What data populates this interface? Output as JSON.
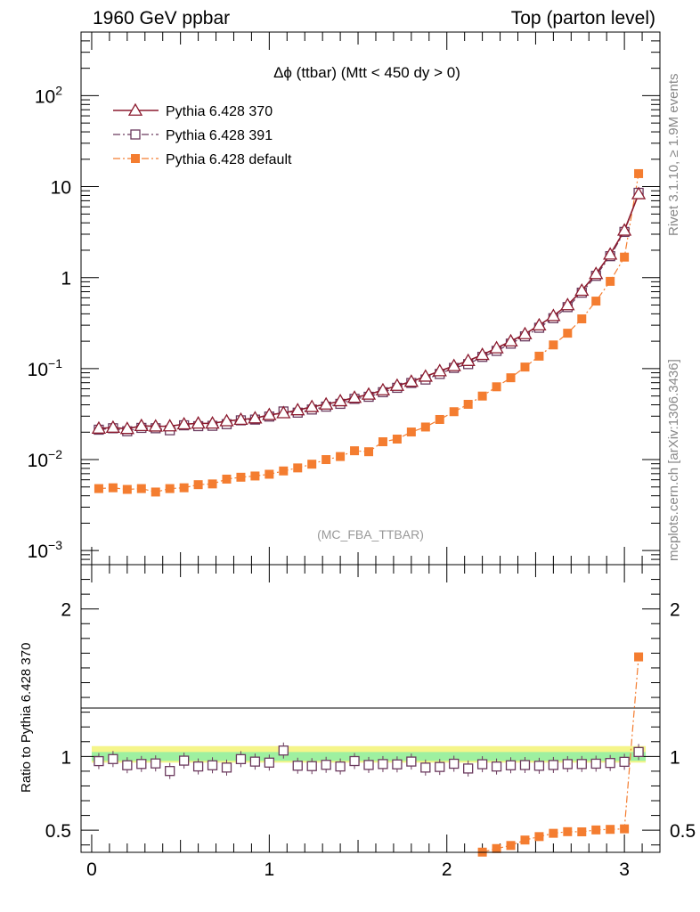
{
  "header": {
    "left": "1960 GeV ppbar",
    "right": "Top (parton level)"
  },
  "side_text": {
    "rivet": "Rivet 3.1.10, ≥ 1.9M events",
    "source": "mcplots.cern.ch [arXiv:1306.3436]"
  },
  "chart_data": {
    "type": "line",
    "title": "Δϕ (ttbar) (Mtt < 450 dy > 0)",
    "watermark": "(MC_FBA_TTBAR)",
    "xlim": [
      -0.06,
      3.2
    ],
    "x_ticks": [
      "0",
      "1",
      "2",
      "3"
    ],
    "main": {
      "yscale": "log",
      "ylim": [
        0.0007,
        500
      ],
      "y_ticks": [
        {
          "value": 0.001,
          "label": "10",
          "exp": "−3"
        },
        {
          "value": 0.01,
          "label": "10",
          "exp": "−2"
        },
        {
          "value": 0.1,
          "label": "10",
          "exp": "−1"
        },
        {
          "value": 1,
          "label": "1",
          "exp": ""
        },
        {
          "value": 10,
          "label": "10",
          "exp": ""
        },
        {
          "value": 100,
          "label": "10",
          "exp": "2"
        }
      ]
    },
    "ratio": {
      "ylabel": "Ratio to Pythia 6.428 370",
      "ylim": [
        0.35,
        2.3
      ],
      "y_ticks": [
        "0.5",
        "1",
        "2"
      ],
      "band_inner": 0.03,
      "band_outer": 0.07
    },
    "x": [
      0.04,
      0.12,
      0.2,
      0.28,
      0.36,
      0.44,
      0.52,
      0.6,
      0.68,
      0.76,
      0.84,
      0.92,
      1.0,
      1.08,
      1.16,
      1.24,
      1.32,
      1.4,
      1.48,
      1.56,
      1.64,
      1.72,
      1.8,
      1.88,
      1.96,
      2.04,
      2.12,
      2.2,
      2.28,
      2.36,
      2.44,
      2.52,
      2.6,
      2.68,
      2.76,
      2.84,
      2.92,
      3.0,
      3.08
    ],
    "series": [
      {
        "name": "Pythia 6.428 370",
        "color": "#8b1a2e",
        "marker": "triangle-open",
        "line": "solid",
        "values": [
          0.022,
          0.0225,
          0.0218,
          0.0235,
          0.0232,
          0.0233,
          0.0245,
          0.025,
          0.025,
          0.0265,
          0.0275,
          0.0285,
          0.031,
          0.0325,
          0.035,
          0.038,
          0.0405,
          0.044,
          0.048,
          0.052,
          0.058,
          0.065,
          0.072,
          0.082,
          0.094,
          0.107,
          0.122,
          0.142,
          0.168,
          0.2,
          0.24,
          0.3,
          0.38,
          0.5,
          0.72,
          1.1,
          1.8,
          3.3,
          8.3
        ]
      },
      {
        "name": "Pythia 6.428 391",
        "color": "#6b3a5e",
        "marker": "square-open",
        "line": "dashdot",
        "values": [
          0.0213,
          0.0221,
          0.0205,
          0.0223,
          0.0221,
          0.021,
          0.0238,
          0.0233,
          0.0235,
          0.0245,
          0.027,
          0.0275,
          0.0297,
          0.0338,
          0.0328,
          0.0355,
          0.0382,
          0.041,
          0.0465,
          0.049,
          0.055,
          0.0615,
          0.0695,
          0.0758,
          0.0873,
          0.1017,
          0.112,
          0.1345,
          0.1565,
          0.188,
          0.226,
          0.281,
          0.358,
          0.474,
          0.683,
          1.046,
          1.72,
          3.18,
          8.55
        ]
      },
      {
        "name": "Pythia 6.428 default",
        "color": "#f47d30",
        "marker": "square-filled",
        "line": "dashdot",
        "values": [
          0.0048,
          0.0049,
          0.0047,
          0.0048,
          0.0044,
          0.0048,
          0.0049,
          0.0053,
          0.0054,
          0.0061,
          0.0064,
          0.0066,
          0.0069,
          0.0075,
          0.0081,
          0.0089,
          0.01,
          0.0108,
          0.0125,
          0.0122,
          0.0157,
          0.0168,
          0.0201,
          0.0228,
          0.0276,
          0.0336,
          0.0405,
          0.0499,
          0.0631,
          0.0793,
          0.104,
          0.137,
          0.182,
          0.245,
          0.352,
          0.552,
          0.91,
          1.68,
          13.9
        ]
      }
    ]
  }
}
